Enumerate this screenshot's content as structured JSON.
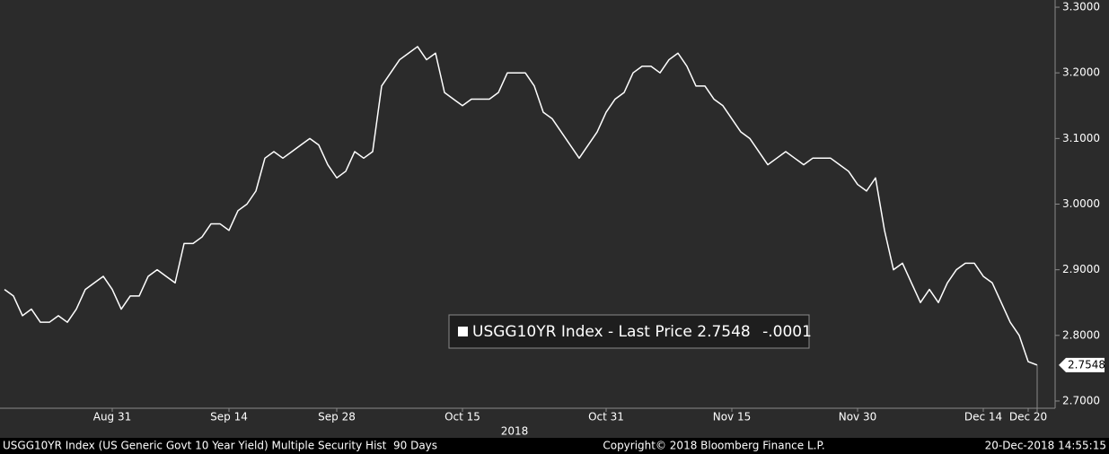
{
  "chart_data": {
    "type": "line",
    "series": [
      {
        "name": "USGG10YR Index - Last Price",
        "color": "#ffffff",
        "values": [
          2.87,
          2.86,
          2.83,
          2.84,
          2.82,
          2.82,
          2.83,
          2.82,
          2.84,
          2.87,
          2.88,
          2.89,
          2.87,
          2.84,
          2.86,
          2.86,
          2.89,
          2.9,
          2.89,
          2.88,
          2.94,
          2.94,
          2.95,
          2.97,
          2.97,
          2.96,
          2.99,
          3.0,
          3.02,
          3.07,
          3.08,
          3.07,
          3.08,
          3.09,
          3.1,
          3.09,
          3.06,
          3.04,
          3.05,
          3.08,
          3.07,
          3.08,
          3.18,
          3.2,
          3.22,
          3.23,
          3.24,
          3.22,
          3.23,
          3.17,
          3.16,
          3.15,
          3.16,
          3.16,
          3.16,
          3.17,
          3.2,
          3.2,
          3.2,
          3.18,
          3.14,
          3.13,
          3.11,
          3.09,
          3.07,
          3.09,
          3.11,
          3.14,
          3.16,
          3.17,
          3.2,
          3.21,
          3.21,
          3.2,
          3.22,
          3.23,
          3.21,
          3.18,
          3.18,
          3.16,
          3.15,
          3.13,
          3.11,
          3.1,
          3.08,
          3.06,
          3.07,
          3.08,
          3.07,
          3.06,
          3.07,
          3.07,
          3.07,
          3.06,
          3.05,
          3.03,
          3.02,
          3.04,
          2.96,
          2.9,
          2.91,
          2.88,
          2.85,
          2.87,
          2.85,
          2.88,
          2.9,
          2.91,
          2.91,
          2.89,
          2.88,
          2.85,
          2.82,
          2.8,
          2.76,
          2.7548
        ]
      }
    ],
    "categories": [
      null,
      null,
      null,
      null,
      null,
      null,
      null,
      null,
      null,
      null,
      null,
      null,
      "Aug 31",
      null,
      null,
      null,
      null,
      null,
      null,
      null,
      null,
      null,
      null,
      null,
      null,
      "Sep 14",
      null,
      null,
      null,
      null,
      null,
      null,
      null,
      null,
      null,
      null,
      null,
      "Sep 28",
      null,
      null,
      null,
      null,
      null,
      null,
      null,
      null,
      null,
      null,
      null,
      null,
      null,
      "Oct 15",
      null,
      null,
      null,
      null,
      null,
      null,
      null,
      null,
      null,
      null,
      null,
      null,
      null,
      null,
      null,
      "Oct 31",
      null,
      null,
      null,
      null,
      null,
      null,
      null,
      null,
      null,
      null,
      null,
      null,
      null,
      "Nov 15",
      null,
      null,
      null,
      null,
      null,
      null,
      null,
      null,
      null,
      null,
      null,
      null,
      null,
      "Nov 30",
      null,
      null,
      null,
      null,
      null,
      null,
      null,
      null,
      null,
      null,
      null,
      null,
      null,
      "Dec 14",
      null,
      null,
      null,
      null,
      "Dec 20",
      null
    ],
    "year_label": "2018",
    "change_label": "-.0001",
    "ylim": [
      2.689,
      3.311
    ],
    "yticks": [
      {
        "value": 2.7,
        "label": "2.7000"
      },
      {
        "value": 2.8,
        "label": "2.8000"
      },
      {
        "value": 2.9,
        "label": "2.9000"
      },
      {
        "value": 3.0,
        "label": "3.0000"
      },
      {
        "value": 3.1,
        "label": "3.1000"
      },
      {
        "value": 3.2,
        "label": "3.2000"
      },
      {
        "value": 3.3,
        "label": "3.3000"
      }
    ],
    "footer_left": "USGG10YR Index (US Generic Govt 10 Year Yield) Multiple Security Hist  90 Days",
    "footer_center": "Copyright© 2018 Bloomberg Finance L.P.",
    "footer_right": "20-Dec-2018 14:55:15"
  }
}
